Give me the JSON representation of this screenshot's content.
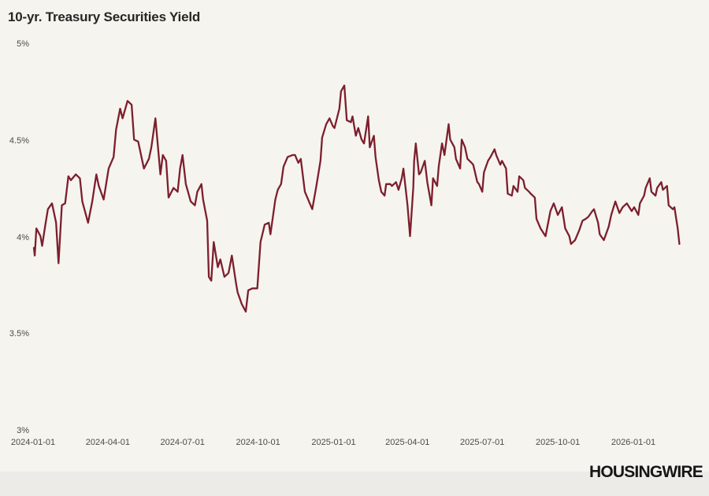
{
  "header": {
    "title": "10-yr. Treasury Securities Yield"
  },
  "footer": {
    "brand": "HOUSINGWIRE"
  },
  "colors": {
    "background": "#f6f4ef",
    "footer_band": "#edebe7",
    "line": "#7c1f2d",
    "title_text": "#262624",
    "tick_text": "#4c4b47",
    "brand_text": "#161616"
  },
  "chart_data": {
    "type": "line",
    "title": "10-yr. Treasury Securities Yield",
    "xlabel": "",
    "ylabel": "",
    "grid": false,
    "legend_position": "none",
    "ylim": [
      3,
      5
    ],
    "y_ticks": [
      {
        "label": "5%",
        "value": 5.0
      },
      {
        "label": "4.5%",
        "value": 4.5
      },
      {
        "label": "4%",
        "value": 4.0
      },
      {
        "label": "3.5%",
        "value": 3.5
      },
      {
        "label": "3%",
        "value": 3.0
      }
    ],
    "x_ticks": [
      "2024-01-01",
      "2024-04-01",
      "2024-07-01",
      "2024-10-01",
      "2025-01-01",
      "2025-04-01",
      "2025-07-01",
      "2025-10-01",
      "2026-01-01"
    ],
    "series": [
      {
        "name": "10-yr. Treasury Securities Yield",
        "unit": "%",
        "points": [
          [
            "2024-01-02",
            3.95
          ],
          [
            "2024-01-03",
            3.91
          ],
          [
            "2024-01-05",
            4.05
          ],
          [
            "2024-01-10",
            4.01
          ],
          [
            "2024-01-12",
            3.96
          ],
          [
            "2024-01-16",
            4.07
          ],
          [
            "2024-01-19",
            4.15
          ],
          [
            "2024-01-24",
            4.18
          ],
          [
            "2024-01-29",
            4.08
          ],
          [
            "2024-02-01",
            3.87
          ],
          [
            "2024-02-05",
            4.17
          ],
          [
            "2024-02-09",
            4.18
          ],
          [
            "2024-02-13",
            4.32
          ],
          [
            "2024-02-16",
            4.3
          ],
          [
            "2024-02-22",
            4.33
          ],
          [
            "2024-02-27",
            4.31
          ],
          [
            "2024-03-01",
            4.19
          ],
          [
            "2024-03-08",
            4.08
          ],
          [
            "2024-03-13",
            4.19
          ],
          [
            "2024-03-18",
            4.33
          ],
          [
            "2024-03-21",
            4.27
          ],
          [
            "2024-03-27",
            4.2
          ],
          [
            "2024-04-02",
            4.36
          ],
          [
            "2024-04-08",
            4.42
          ],
          [
            "2024-04-11",
            4.56
          ],
          [
            "2024-04-16",
            4.67
          ],
          [
            "2024-04-19",
            4.62
          ],
          [
            "2024-04-25",
            4.71
          ],
          [
            "2024-04-30",
            4.69
          ],
          [
            "2024-05-03",
            4.51
          ],
          [
            "2024-05-08",
            4.5
          ],
          [
            "2024-05-15",
            4.36
          ],
          [
            "2024-05-21",
            4.41
          ],
          [
            "2024-05-24",
            4.47
          ],
          [
            "2024-05-29",
            4.62
          ],
          [
            "2024-06-04",
            4.33
          ],
          [
            "2024-06-07",
            4.43
          ],
          [
            "2024-06-11",
            4.4
          ],
          [
            "2024-06-14",
            4.21
          ],
          [
            "2024-06-20",
            4.26
          ],
          [
            "2024-06-25",
            4.24
          ],
          [
            "2024-06-28",
            4.36
          ],
          [
            "2024-07-01",
            4.43
          ],
          [
            "2024-07-05",
            4.28
          ],
          [
            "2024-07-11",
            4.19
          ],
          [
            "2024-07-16",
            4.17
          ],
          [
            "2024-07-19",
            4.24
          ],
          [
            "2024-07-24",
            4.28
          ],
          [
            "2024-07-26",
            4.2
          ],
          [
            "2024-07-31",
            4.09
          ],
          [
            "2024-08-02",
            3.8
          ],
          [
            "2024-08-05",
            3.78
          ],
          [
            "2024-08-08",
            3.98
          ],
          [
            "2024-08-13",
            3.85
          ],
          [
            "2024-08-16",
            3.89
          ],
          [
            "2024-08-21",
            3.8
          ],
          [
            "2024-08-26",
            3.82
          ],
          [
            "2024-08-30",
            3.91
          ],
          [
            "2024-09-04",
            3.77
          ],
          [
            "2024-09-06",
            3.72
          ],
          [
            "2024-09-11",
            3.66
          ],
          [
            "2024-09-16",
            3.62
          ],
          [
            "2024-09-19",
            3.73
          ],
          [
            "2024-09-24",
            3.74
          ],
          [
            "2024-09-30",
            3.74
          ],
          [
            "2024-10-04",
            3.98
          ],
          [
            "2024-10-09",
            4.07
          ],
          [
            "2024-10-14",
            4.08
          ],
          [
            "2024-10-16",
            4.02
          ],
          [
            "2024-10-22",
            4.2
          ],
          [
            "2024-10-25",
            4.25
          ],
          [
            "2024-10-29",
            4.28
          ],
          [
            "2024-11-01",
            4.37
          ],
          [
            "2024-11-06",
            4.42
          ],
          [
            "2024-11-12",
            4.43
          ],
          [
            "2024-11-15",
            4.43
          ],
          [
            "2024-11-19",
            4.39
          ],
          [
            "2024-11-22",
            4.41
          ],
          [
            "2024-11-27",
            4.24
          ],
          [
            "2024-12-02",
            4.19
          ],
          [
            "2024-12-06",
            4.15
          ],
          [
            "2024-12-11",
            4.27
          ],
          [
            "2024-12-16",
            4.4
          ],
          [
            "2024-12-18",
            4.52
          ],
          [
            "2024-12-23",
            4.59
          ],
          [
            "2024-12-27",
            4.62
          ],
          [
            "2024-12-31",
            4.58
          ],
          [
            "2025-01-02",
            4.57
          ],
          [
            "2025-01-08",
            4.67
          ],
          [
            "2025-01-10",
            4.76
          ],
          [
            "2025-01-14",
            4.79
          ],
          [
            "2025-01-17",
            4.61
          ],
          [
            "2025-01-22",
            4.6
          ],
          [
            "2025-01-24",
            4.63
          ],
          [
            "2025-01-28",
            4.53
          ],
          [
            "2025-01-31",
            4.57
          ],
          [
            "2025-02-04",
            4.51
          ],
          [
            "2025-02-07",
            4.49
          ],
          [
            "2025-02-12",
            4.63
          ],
          [
            "2025-02-14",
            4.47
          ],
          [
            "2025-02-19",
            4.53
          ],
          [
            "2025-02-21",
            4.42
          ],
          [
            "2025-02-25",
            4.3
          ],
          [
            "2025-02-28",
            4.24
          ],
          [
            "2025-03-04",
            4.22
          ],
          [
            "2025-03-06",
            4.28
          ],
          [
            "2025-03-11",
            4.28
          ],
          [
            "2025-03-13",
            4.27
          ],
          [
            "2025-03-18",
            4.29
          ],
          [
            "2025-03-21",
            4.25
          ],
          [
            "2025-03-25",
            4.31
          ],
          [
            "2025-03-27",
            4.36
          ],
          [
            "2025-04-01",
            4.17
          ],
          [
            "2025-04-04",
            4.01
          ],
          [
            "2025-04-08",
            4.26
          ],
          [
            "2025-04-09",
            4.4
          ],
          [
            "2025-04-11",
            4.49
          ],
          [
            "2025-04-15",
            4.33
          ],
          [
            "2025-04-17",
            4.34
          ],
          [
            "2025-04-22",
            4.4
          ],
          [
            "2025-04-25",
            4.29
          ],
          [
            "2025-04-30",
            4.17
          ],
          [
            "2025-05-02",
            4.31
          ],
          [
            "2025-05-07",
            4.27
          ],
          [
            "2025-05-09",
            4.37
          ],
          [
            "2025-05-13",
            4.49
          ],
          [
            "2025-05-16",
            4.43
          ],
          [
            "2025-05-21",
            4.59
          ],
          [
            "2025-05-23",
            4.51
          ],
          [
            "2025-05-28",
            4.47
          ],
          [
            "2025-05-30",
            4.41
          ],
          [
            "2025-06-04",
            4.36
          ],
          [
            "2025-06-06",
            4.51
          ],
          [
            "2025-06-10",
            4.47
          ],
          [
            "2025-06-13",
            4.41
          ],
          [
            "2025-06-18",
            4.39
          ],
          [
            "2025-06-20",
            4.38
          ],
          [
            "2025-06-25",
            4.29
          ],
          [
            "2025-06-27",
            4.28
          ],
          [
            "2025-07-01",
            4.24
          ],
          [
            "2025-07-03",
            4.34
          ],
          [
            "2025-07-08",
            4.4
          ],
          [
            "2025-07-11",
            4.42
          ],
          [
            "2025-07-16",
            4.46
          ],
          [
            "2025-07-18",
            4.43
          ],
          [
            "2025-07-23",
            4.38
          ],
          [
            "2025-07-25",
            4.4
          ],
          [
            "2025-07-30",
            4.36
          ],
          [
            "2025-08-01",
            4.23
          ],
          [
            "2025-08-06",
            4.22
          ],
          [
            "2025-08-08",
            4.27
          ],
          [
            "2025-08-13",
            4.24
          ],
          [
            "2025-08-15",
            4.32
          ],
          [
            "2025-08-20",
            4.3
          ],
          [
            "2025-08-22",
            4.26
          ],
          [
            "2025-08-27",
            4.24
          ],
          [
            "2025-08-29",
            4.23
          ],
          [
            "2025-09-03",
            4.21
          ],
          [
            "2025-09-05",
            4.1
          ],
          [
            "2025-09-10",
            4.05
          ],
          [
            "2025-09-16",
            4.01
          ],
          [
            "2025-09-22",
            4.14
          ],
          [
            "2025-09-26",
            4.18
          ],
          [
            "2025-10-01",
            4.12
          ],
          [
            "2025-10-06",
            4.16
          ],
          [
            "2025-10-10",
            4.05
          ],
          [
            "2025-10-15",
            4.01
          ],
          [
            "2025-10-17",
            3.97
          ],
          [
            "2025-10-22",
            3.99
          ],
          [
            "2025-10-27",
            4.04
          ],
          [
            "2025-10-31",
            4.09
          ],
          [
            "2025-11-04",
            4.1
          ],
          [
            "2025-11-07",
            4.11
          ],
          [
            "2025-11-12",
            4.14
          ],
          [
            "2025-11-14",
            4.15
          ],
          [
            "2025-11-19",
            4.08
          ],
          [
            "2025-11-21",
            4.02
          ],
          [
            "2025-11-26",
            3.99
          ],
          [
            "2025-12-02",
            4.06
          ],
          [
            "2025-12-05",
            4.12
          ],
          [
            "2025-12-10",
            4.19
          ],
          [
            "2025-12-15",
            4.13
          ],
          [
            "2025-12-19",
            4.16
          ],
          [
            "2025-12-24",
            4.18
          ],
          [
            "2025-12-30",
            4.14
          ],
          [
            "2026-01-02",
            4.16
          ],
          [
            "2026-01-07",
            4.12
          ],
          [
            "2026-01-09",
            4.18
          ],
          [
            "2026-01-14",
            4.22
          ],
          [
            "2026-01-16",
            4.26
          ],
          [
            "2026-01-21",
            4.31
          ],
          [
            "2026-01-23",
            4.24
          ],
          [
            "2026-01-28",
            4.22
          ],
          [
            "2026-01-30",
            4.26
          ],
          [
            "2026-02-04",
            4.29
          ],
          [
            "2026-02-06",
            4.25
          ],
          [
            "2026-02-11",
            4.27
          ],
          [
            "2026-02-13",
            4.17
          ],
          [
            "2026-02-18",
            4.15
          ],
          [
            "2026-02-20",
            4.16
          ],
          [
            "2026-02-24",
            4.05
          ],
          [
            "2026-02-26",
            3.97
          ]
        ]
      }
    ]
  }
}
